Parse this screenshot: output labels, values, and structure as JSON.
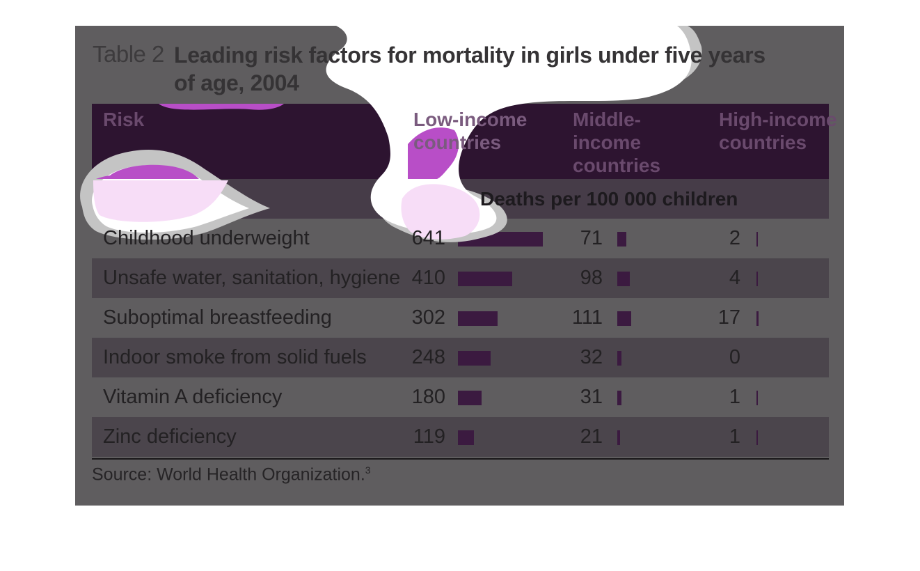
{
  "title": {
    "number": "Table 2",
    "text": "Leading risk factors for mortality in girls under five years of age, 2004"
  },
  "headers": {
    "risk": "Risk",
    "low": "Low-income countries",
    "middle": "Middle-income countries",
    "high": "High-income countries"
  },
  "unit_label": "Deaths per 100 000 children",
  "source": {
    "text": "Source: World Health Organization.",
    "footnote": "3"
  },
  "colors": {
    "panel": "#5f5d5f",
    "header_band": "#2d1430",
    "bar": "#3b1a40",
    "highlight": "#b84ec7"
  },
  "chart_data": {
    "type": "table",
    "title": "Leading risk factors for mortality in girls under five years of age, 2004",
    "unit": "Deaths per 100 000 children",
    "columns": [
      "Low-income countries",
      "Middle-income countries",
      "High-income countries"
    ],
    "rows": [
      {
        "risk": "Childhood underweight",
        "low": "641",
        "middle": "71",
        "high": "2"
      },
      {
        "risk": "Unsafe water, sanitation, hygiene",
        "low": "410",
        "middle": "98",
        "high": "4"
      },
      {
        "risk": "Suboptimal breastfeeding",
        "low": "302",
        "middle": "111",
        "high": "17"
      },
      {
        "risk": "Indoor smoke from solid fuels",
        "low": "248",
        "middle": "32",
        "high": "0"
      },
      {
        "risk": "Vitamin A deficiency",
        "low": "180",
        "middle": "31",
        "high": "1"
      },
      {
        "risk": "Zinc deficiency",
        "low": "119",
        "middle": "21",
        "high": "1"
      }
    ]
  }
}
